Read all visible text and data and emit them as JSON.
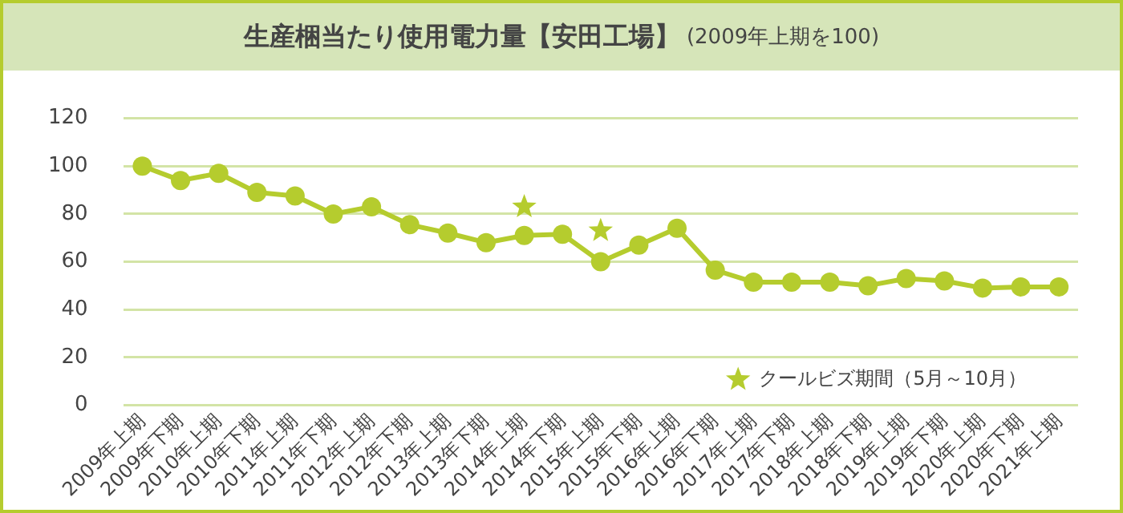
{
  "chart_data": {
    "type": "line",
    "title": "生産梱当たり使用電力量【安田工場】",
    "subtitle": "(2009年上期を100)",
    "categories": [
      "2009年上期",
      "2009年下期",
      "2010年上期",
      "2010年下期",
      "2011年上期",
      "2011年下期",
      "2012年上期",
      "2012年下期",
      "2013年上期",
      "2013年下期",
      "2014年上期",
      "2014年下期",
      "2015年上期",
      "2015年下期",
      "2016年上期",
      "2016年下期",
      "2017年上期",
      "2017年下期",
      "2018年上期",
      "2018年下期",
      "2019年上期",
      "2019年下期",
      "2020年上期",
      "2020年下期",
      "2021年上期"
    ],
    "series": [
      {
        "color": "#b5cc2e",
        "marker": "circle",
        "values": [
          100,
          94,
          97,
          89,
          87.5,
          80,
          83,
          75.5,
          72,
          68,
          71,
          71.5,
          60,
          67,
          74,
          56.5,
          51.5,
          51.5,
          51.5,
          50,
          53,
          52,
          49,
          49.5,
          49.5
        ]
      },
      {
        "type": "scatter",
        "name": "クールビズ期間（5月～10月）",
        "color": "#b5cc2e",
        "marker": "star",
        "x": [
          "2014年上期",
          "2015年上期"
        ],
        "values": [
          83,
          73
        ]
      }
    ],
    "ylim": [
      0,
      120
    ],
    "yticks": [
      0,
      20,
      40,
      60,
      80,
      100,
      120
    ],
    "grid": "y",
    "legend": "bottom right"
  }
}
